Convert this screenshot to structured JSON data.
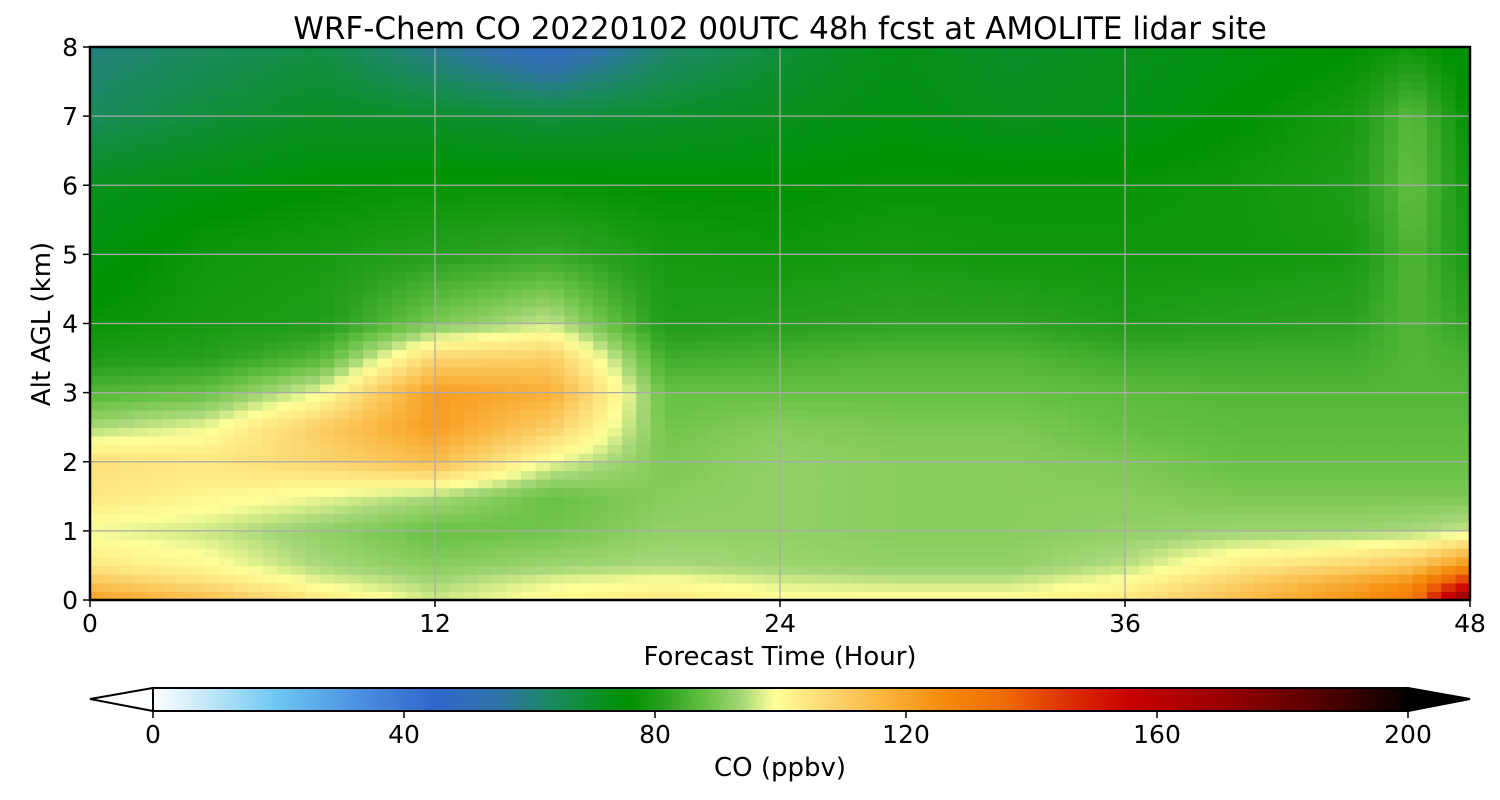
{
  "chart_data": {
    "type": "heatmap",
    "title": "WRF-Chem CO  20220102 00UTC 48h fcst at AMOLITE lidar site",
    "xlabel": "Forecast Time (Hour)",
    "ylabel": "Alt AGL (km)",
    "xlim": [
      0,
      48
    ],
    "ylim": [
      0,
      8
    ],
    "x_ticks": [
      "0",
      "12",
      "24",
      "36",
      "48"
    ],
    "y_ticks": [
      "0",
      "1",
      "2",
      "3",
      "4",
      "5",
      "6",
      "7",
      "8"
    ],
    "grid": true,
    "grid_x": [
      0,
      12,
      24,
      36,
      48
    ],
    "grid_y": [
      0,
      1,
      2,
      3,
      4,
      5,
      6,
      7,
      8
    ],
    "colorbar": {
      "label": "CO  (ppbv)",
      "min": 0,
      "max": 200,
      "ticks": [
        "0",
        "40",
        "80",
        "120",
        "160",
        "200"
      ],
      "extend": "both",
      "orientation": "horizontal",
      "stops": [
        {
          "v": 0,
          "c": "#ffffff"
        },
        {
          "v": 10,
          "c": "#b8e3f7"
        },
        {
          "v": 20,
          "c": "#6cc6f2"
        },
        {
          "v": 33,
          "c": "#4a8fe0"
        },
        {
          "v": 45,
          "c": "#3166cc"
        },
        {
          "v": 55,
          "c": "#2f74a8"
        },
        {
          "v": 64,
          "c": "#1a8a5c"
        },
        {
          "v": 70,
          "c": "#0a8f2a"
        },
        {
          "v": 76,
          "c": "#009100"
        },
        {
          "v": 82,
          "c": "#2ea322"
        },
        {
          "v": 88,
          "c": "#66c142"
        },
        {
          "v": 94,
          "c": "#a8d878"
        },
        {
          "v": 99,
          "c": "#ffff99"
        },
        {
          "v": 108,
          "c": "#fcd56f"
        },
        {
          "v": 118,
          "c": "#f9ae35"
        },
        {
          "v": 126,
          "c": "#f58a0b"
        },
        {
          "v": 136,
          "c": "#ef6a05"
        },
        {
          "v": 146,
          "c": "#dc2e04"
        },
        {
          "v": 156,
          "c": "#c80000"
        },
        {
          "v": 170,
          "c": "#9a0000"
        },
        {
          "v": 185,
          "c": "#5a0000"
        },
        {
          "v": 198,
          "c": "#120000"
        },
        {
          "v": 200,
          "c": "#000000"
        }
      ]
    },
    "field": {
      "x": [
        0,
        4,
        8,
        12,
        16,
        20,
        24,
        28,
        32,
        36,
        40,
        44,
        46,
        48
      ],
      "y": [
        0,
        0.25,
        0.5,
        1,
        1.5,
        2,
        2.5,
        3,
        3.5,
        4,
        5,
        6,
        7,
        8
      ],
      "z": [
        [
          122,
          114,
          104,
          96,
          100,
          104,
          100,
          100,
          100,
          104,
          114,
          124,
          130,
          180
        ],
        [
          112,
          106,
          98,
          94,
          98,
          100,
          97,
          96,
          96,
          100,
          110,
          120,
          126,
          150
        ],
        [
          104,
          100,
          94,
          91,
          93,
          94,
          93,
          92,
          92,
          95,
          103,
          108,
          112,
          125
        ],
        [
          98,
          96,
          92,
          88,
          89,
          92,
          92,
          91,
          91,
          92,
          93,
          93,
          94,
          96
        ],
        [
          104,
          101,
          98,
          94,
          88,
          91,
          92,
          91,
          91,
          91,
          90,
          90,
          90,
          90
        ],
        [
          106,
          104,
          108,
          114,
          98,
          90,
          92,
          91,
          91,
          90,
          88,
          88,
          88,
          88
        ],
        [
          94,
          98,
          110,
          122,
          110,
          89,
          91,
          90,
          90,
          88,
          87,
          87,
          87,
          87
        ],
        [
          86,
          88,
          98,
          122,
          118,
          88,
          88,
          88,
          88,
          87,
          86,
          86,
          86,
          86
        ],
        [
          80,
          81,
          86,
          108,
          110,
          84,
          85,
          86,
          86,
          84,
          84,
          84,
          86,
          85
        ],
        [
          77,
          79,
          80,
          90,
          96,
          80,
          81,
          82,
          82,
          80,
          81,
          82,
          86,
          82
        ],
        [
          74,
          78,
          79,
          81,
          83,
          79,
          78,
          79,
          78,
          78,
          78,
          79,
          86,
          79
        ],
        [
          72,
          74,
          76,
          77,
          77,
          76,
          76,
          77,
          77,
          77,
          78,
          80,
          88,
          78
        ],
        [
          64,
          68,
          71,
          70,
          68,
          70,
          72,
          74,
          72,
          73,
          76,
          79,
          87,
          76
        ],
        [
          60,
          64,
          67,
          58,
          48,
          62,
          68,
          73,
          70,
          72,
          74,
          76,
          78,
          74
        ]
      ]
    }
  }
}
